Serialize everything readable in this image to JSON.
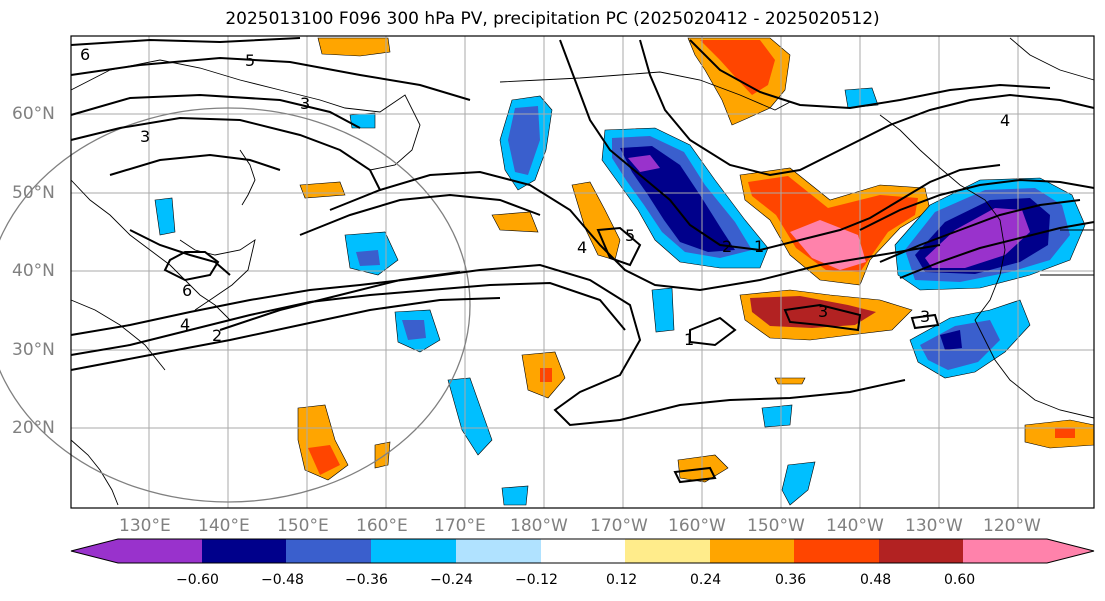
{
  "title": "2025013100 F096 300 hPa PV, precipitation PC (2025020412 - 2025020512)",
  "lat_labels": [
    "60°N",
    "50°N",
    "40°N",
    "30°N",
    "20°N"
  ],
  "lon_labels": [
    "130°E",
    "140°E",
    "150°E",
    "160°E",
    "170°E",
    "180°W",
    "170°W",
    "160°W",
    "150°W",
    "140°W",
    "130°W",
    "120°W"
  ],
  "colorbar": {
    "ticks": [
      "−0.60",
      "−0.48",
      "−0.36",
      "−0.24",
      "−0.12",
      "0.12",
      "0.24",
      "0.36",
      "0.48",
      "0.60"
    ],
    "colors": [
      "#9932cc",
      "#00008b",
      "#3a5fcd",
      "#00bfff",
      "#b0e2ff",
      "#ffffff",
      "#ffec8b",
      "#ffa500",
      "#ff4500",
      "#b22222",
      "#ff82ab"
    ]
  },
  "contour_labels": [
    "6",
    "5",
    "3",
    "3",
    "5",
    "4",
    "2",
    "1",
    "6",
    "4",
    "2",
    "3",
    "3",
    "1",
    "4"
  ]
}
